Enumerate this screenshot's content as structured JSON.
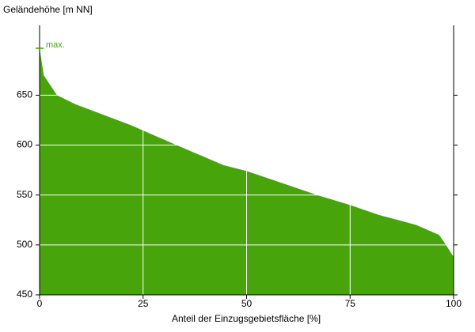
{
  "chart_data": {
    "type": "area",
    "y_label": "Geländehöhe [m NN]",
    "x_label": "Anteil der Einzugsgebietsfläche [%]",
    "annotation": "max.",
    "max_value": 697,
    "color": "#47a40a",
    "grid": true,
    "x": [
      0,
      1,
      4.2,
      8.6,
      22,
      32.5,
      44.4,
      50,
      60,
      67,
      75,
      82,
      91,
      96.5,
      98,
      100
    ],
    "values": [
      697,
      670,
      650,
      641,
      620,
      601,
      580,
      574,
      560,
      550,
      540,
      530,
      520,
      510,
      501,
      488
    ],
    "xlim": [
      0,
      100
    ],
    "xticks": [
      0,
      25,
      50,
      75,
      100
    ],
    "ylim": [
      450,
      720
    ],
    "yticks": [
      450,
      500,
      550,
      600,
      650
    ]
  }
}
